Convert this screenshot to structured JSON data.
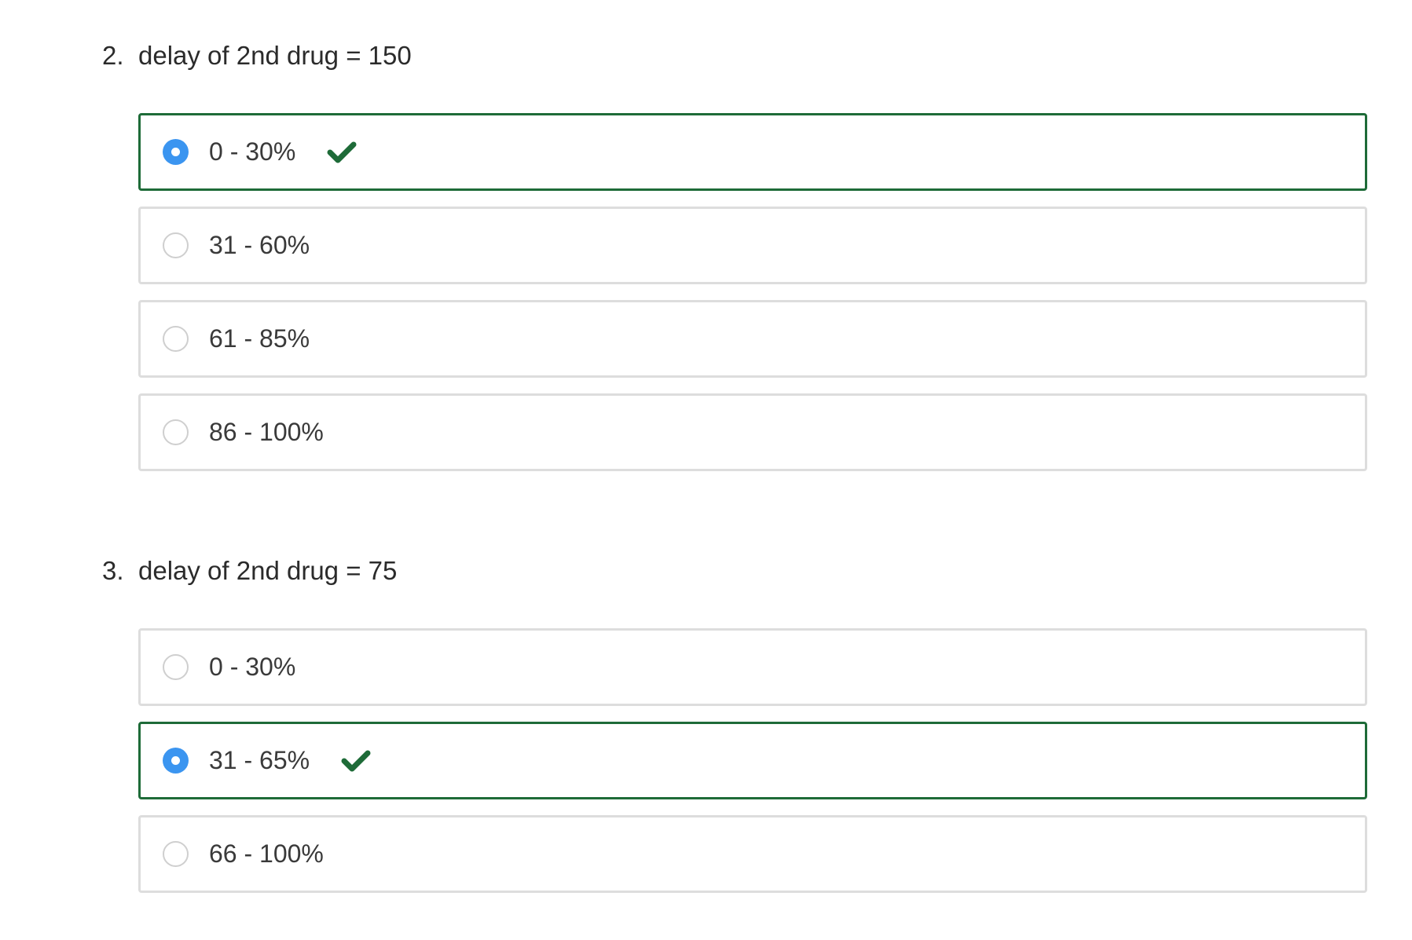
{
  "questions": [
    {
      "number": "2.",
      "text": "delay of 2nd drug = 150",
      "options": [
        {
          "label": "0 - 30%",
          "selected": true,
          "correct": true
        },
        {
          "label": "31 - 60%",
          "selected": false,
          "correct": false
        },
        {
          "label": "61 - 85%",
          "selected": false,
          "correct": false
        },
        {
          "label": "86 - 100%",
          "selected": false,
          "correct": false
        }
      ]
    },
    {
      "number": "3.",
      "text": "delay of 2nd drug = 75",
      "options": [
        {
          "label": "0 - 30%",
          "selected": false,
          "correct": false
        },
        {
          "label": "31 - 65%",
          "selected": true,
          "correct": true
        },
        {
          "label": "66 - 100%",
          "selected": false,
          "correct": false
        }
      ]
    }
  ],
  "colors": {
    "correct_border": "#1e6b38",
    "check_icon": "#1e6b38",
    "radio_selected": "#3b95f0",
    "option_border": "#dddddd"
  },
  "icons": {
    "correct": "checkmark-icon",
    "radio_selected": "radio-selected-icon",
    "radio_unselected": "radio-unselected-icon"
  }
}
